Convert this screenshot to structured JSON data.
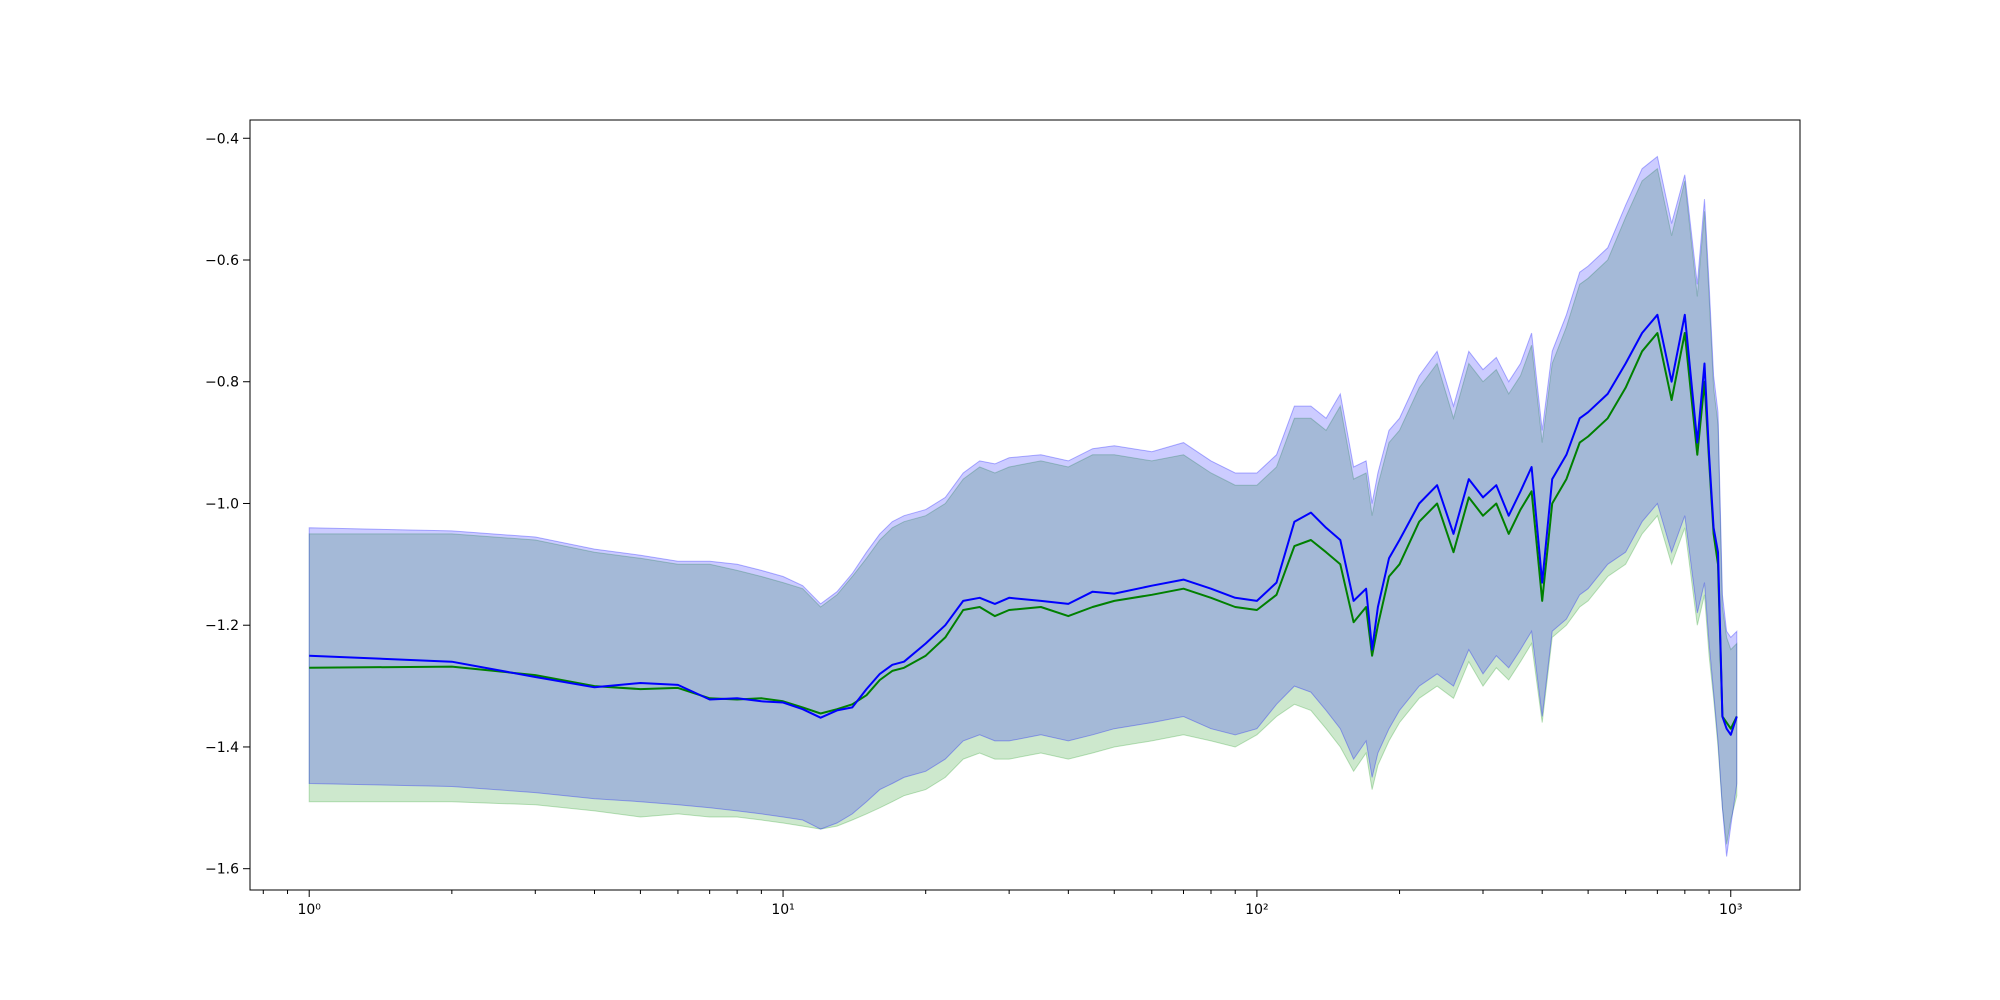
{
  "chart_data": {
    "type": "line",
    "title": "",
    "xlabel": "",
    "ylabel": "",
    "x_scale": "log",
    "xlim": [
      0.75,
      1400
    ],
    "ylim": [
      -1.635,
      -0.37
    ],
    "grid": false,
    "legend": "none",
    "x_ticks": [
      {
        "value": 1,
        "label": "10⁰"
      },
      {
        "value": 10,
        "label": "10¹"
      },
      {
        "value": 100,
        "label": "10²"
      },
      {
        "value": 1000,
        "label": "10³"
      }
    ],
    "y_ticks": [
      {
        "value": -1.6,
        "label": "−1.6"
      },
      {
        "value": -1.4,
        "label": "−1.4"
      },
      {
        "value": -1.2,
        "label": "−1.2"
      },
      {
        "value": -1.0,
        "label": "−1.0"
      },
      {
        "value": -0.8,
        "label": "−0.8"
      },
      {
        "value": -0.6,
        "label": "−0.6"
      },
      {
        "value": -0.4,
        "label": "−0.4"
      }
    ],
    "series": [
      {
        "color": "#008000",
        "band_color": "#2ca02c",
        "x": [
          1,
          2,
          3,
          4,
          5,
          6,
          7,
          8,
          9,
          10,
          11,
          12,
          13,
          14,
          15,
          16,
          17,
          18,
          20,
          22,
          24,
          26,
          28,
          30,
          35,
          40,
          45,
          50,
          60,
          70,
          80,
          90,
          100,
          110,
          120,
          130,
          140,
          150,
          160,
          170,
          175,
          180,
          190,
          200,
          220,
          240,
          260,
          280,
          300,
          320,
          340,
          360,
          380,
          400,
          420,
          450,
          480,
          500,
          550,
          600,
          650,
          700,
          750,
          800,
          850,
          880,
          900,
          920,
          940,
          960,
          980,
          1000,
          1030
        ],
        "y": [
          -1.27,
          -1.268,
          -1.282,
          -1.3,
          -1.305,
          -1.303,
          -1.32,
          -1.322,
          -1.32,
          -1.325,
          -1.335,
          -1.345,
          -1.338,
          -1.33,
          -1.315,
          -1.29,
          -1.275,
          -1.27,
          -1.25,
          -1.22,
          -1.175,
          -1.17,
          -1.185,
          -1.175,
          -1.17,
          -1.185,
          -1.17,
          -1.16,
          -1.15,
          -1.14,
          -1.155,
          -1.17,
          -1.175,
          -1.15,
          -1.07,
          -1.06,
          -1.08,
          -1.1,
          -1.195,
          -1.17,
          -1.25,
          -1.2,
          -1.12,
          -1.1,
          -1.03,
          -1.0,
          -1.08,
          -0.99,
          -1.02,
          -1.0,
          -1.05,
          -1.01,
          -0.98,
          -1.16,
          -1.0,
          -0.96,
          -0.9,
          -0.89,
          -0.86,
          -0.81,
          -0.75,
          -0.72,
          -0.83,
          -0.72,
          -0.92,
          -0.8,
          -0.93,
          -1.05,
          -1.1,
          -1.35,
          -1.36,
          -1.37,
          -1.35
        ],
        "lower": [
          -1.49,
          -1.49,
          -1.495,
          -1.505,
          -1.515,
          -1.51,
          -1.515,
          -1.515,
          -1.52,
          -1.525,
          -1.53,
          -1.535,
          -1.53,
          -1.52,
          -1.51,
          -1.5,
          -1.49,
          -1.48,
          -1.47,
          -1.45,
          -1.42,
          -1.41,
          -1.42,
          -1.42,
          -1.41,
          -1.42,
          -1.41,
          -1.4,
          -1.39,
          -1.38,
          -1.39,
          -1.4,
          -1.38,
          -1.35,
          -1.33,
          -1.34,
          -1.37,
          -1.4,
          -1.44,
          -1.41,
          -1.47,
          -1.43,
          -1.39,
          -1.36,
          -1.32,
          -1.3,
          -1.32,
          -1.26,
          -1.3,
          -1.27,
          -1.29,
          -1.26,
          -1.23,
          -1.36,
          -1.22,
          -1.2,
          -1.17,
          -1.16,
          -1.12,
          -1.1,
          -1.05,
          -1.02,
          -1.1,
          -1.04,
          -1.2,
          -1.15,
          -1.25,
          -1.32,
          -1.4,
          -1.5,
          -1.56,
          -1.52,
          -1.48
        ],
        "upper": [
          -1.05,
          -1.05,
          -1.06,
          -1.08,
          -1.09,
          -1.1,
          -1.1,
          -1.11,
          -1.12,
          -1.13,
          -1.14,
          -1.17,
          -1.15,
          -1.12,
          -1.09,
          -1.06,
          -1.04,
          -1.03,
          -1.02,
          -1.0,
          -0.96,
          -0.94,
          -0.95,
          -0.94,
          -0.93,
          -0.94,
          -0.92,
          -0.92,
          -0.93,
          -0.92,
          -0.95,
          -0.97,
          -0.97,
          -0.94,
          -0.86,
          -0.86,
          -0.88,
          -0.84,
          -0.96,
          -0.95,
          -1.02,
          -0.97,
          -0.9,
          -0.88,
          -0.81,
          -0.77,
          -0.86,
          -0.77,
          -0.8,
          -0.78,
          -0.82,
          -0.79,
          -0.74,
          -0.9,
          -0.77,
          -0.71,
          -0.64,
          -0.63,
          -0.6,
          -0.53,
          -0.47,
          -0.45,
          -0.56,
          -0.47,
          -0.66,
          -0.52,
          -0.66,
          -0.81,
          -0.87,
          -1.17,
          -1.22,
          -1.24,
          -1.23
        ]
      },
      {
        "color": "#0000ff",
        "band_color": "#0000ff",
        "x": [
          1,
          2,
          3,
          4,
          5,
          6,
          7,
          8,
          9,
          10,
          11,
          12,
          13,
          14,
          15,
          16,
          17,
          18,
          20,
          22,
          24,
          26,
          28,
          30,
          35,
          40,
          45,
          50,
          60,
          70,
          80,
          90,
          100,
          110,
          120,
          130,
          140,
          150,
          160,
          170,
          175,
          180,
          190,
          200,
          220,
          240,
          260,
          280,
          300,
          320,
          340,
          360,
          380,
          400,
          420,
          450,
          480,
          500,
          550,
          600,
          650,
          700,
          750,
          800,
          850,
          880,
          900,
          920,
          940,
          960,
          980,
          1000,
          1030
        ],
        "y": [
          -1.25,
          -1.26,
          -1.285,
          -1.302,
          -1.295,
          -1.298,
          -1.322,
          -1.32,
          -1.325,
          -1.327,
          -1.338,
          -1.352,
          -1.34,
          -1.335,
          -1.305,
          -1.28,
          -1.265,
          -1.26,
          -1.23,
          -1.2,
          -1.16,
          -1.155,
          -1.165,
          -1.155,
          -1.16,
          -1.165,
          -1.145,
          -1.148,
          -1.135,
          -1.125,
          -1.14,
          -1.155,
          -1.16,
          -1.13,
          -1.03,
          -1.015,
          -1.04,
          -1.06,
          -1.16,
          -1.14,
          -1.24,
          -1.17,
          -1.09,
          -1.06,
          -1.0,
          -0.97,
          -1.05,
          -0.96,
          -0.99,
          -0.97,
          -1.02,
          -0.98,
          -0.94,
          -1.13,
          -0.96,
          -0.92,
          -0.86,
          -0.85,
          -0.82,
          -0.77,
          -0.72,
          -0.69,
          -0.8,
          -0.69,
          -0.9,
          -0.77,
          -0.92,
          -1.04,
          -1.08,
          -1.35,
          -1.37,
          -1.38,
          -1.35
        ],
        "lower": [
          -1.46,
          -1.465,
          -1.475,
          -1.485,
          -1.49,
          -1.495,
          -1.5,
          -1.505,
          -1.51,
          -1.515,
          -1.52,
          -1.535,
          -1.525,
          -1.51,
          -1.49,
          -1.47,
          -1.46,
          -1.45,
          -1.44,
          -1.42,
          -1.39,
          -1.38,
          -1.39,
          -1.39,
          -1.38,
          -1.39,
          -1.38,
          -1.37,
          -1.36,
          -1.35,
          -1.37,
          -1.38,
          -1.37,
          -1.33,
          -1.3,
          -1.31,
          -1.34,
          -1.37,
          -1.42,
          -1.39,
          -1.45,
          -1.41,
          -1.37,
          -1.34,
          -1.3,
          -1.28,
          -1.3,
          -1.24,
          -1.28,
          -1.25,
          -1.27,
          -1.24,
          -1.21,
          -1.35,
          -1.21,
          -1.19,
          -1.15,
          -1.14,
          -1.1,
          -1.08,
          -1.03,
          -1.0,
          -1.08,
          -1.02,
          -1.18,
          -1.13,
          -1.23,
          -1.31,
          -1.39,
          -1.5,
          -1.58,
          -1.53,
          -1.46
        ],
        "upper": [
          -1.04,
          -1.045,
          -1.055,
          -1.075,
          -1.085,
          -1.095,
          -1.095,
          -1.1,
          -1.11,
          -1.12,
          -1.135,
          -1.165,
          -1.145,
          -1.115,
          -1.08,
          -1.05,
          -1.03,
          -1.02,
          -1.01,
          -0.99,
          -0.95,
          -0.93,
          -0.935,
          -0.925,
          -0.92,
          -0.93,
          -0.91,
          -0.905,
          -0.915,
          -0.9,
          -0.93,
          -0.95,
          -0.95,
          -0.92,
          -0.84,
          -0.84,
          -0.86,
          -0.82,
          -0.94,
          -0.93,
          -1.0,
          -0.95,
          -0.88,
          -0.86,
          -0.79,
          -0.75,
          -0.84,
          -0.75,
          -0.78,
          -0.76,
          -0.8,
          -0.77,
          -0.72,
          -0.88,
          -0.75,
          -0.69,
          -0.62,
          -0.61,
          -0.58,
          -0.51,
          -0.45,
          -0.43,
          -0.54,
          -0.46,
          -0.64,
          -0.5,
          -0.64,
          -0.79,
          -0.85,
          -1.15,
          -1.21,
          -1.22,
          -1.21
        ]
      }
    ]
  }
}
